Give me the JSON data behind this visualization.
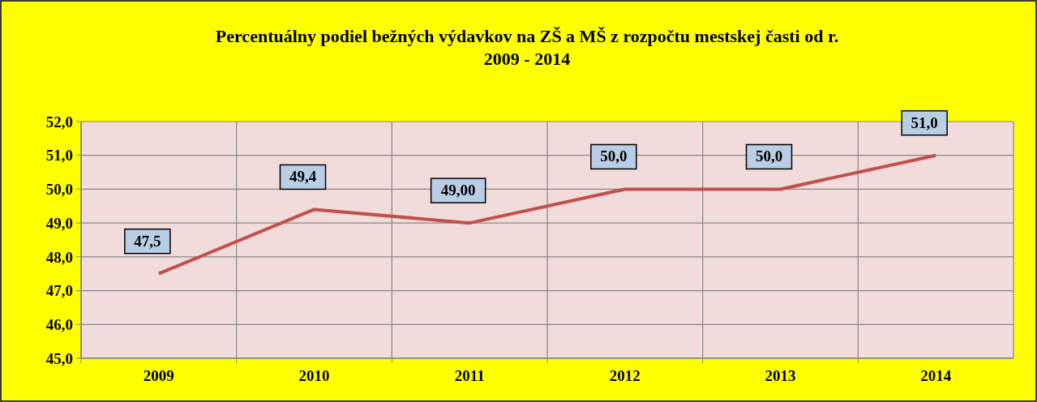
{
  "chart_data": {
    "type": "line",
    "title": "Percentuálny podiel bežných výdavkov na ZŠ a MŠ z rozpočtu mestskej časti od r.\n2009 - 2014",
    "categories": [
      "2009",
      "2010",
      "2011",
      "2012",
      "2013",
      "2014"
    ],
    "series": [
      {
        "color": "#c0504d",
        "values": [
          47.5,
          49.4,
          49.0,
          50.0,
          50.0,
          51.0
        ],
        "value_labels": [
          "47,5",
          "49,4",
          "49,00",
          "50,0",
          "50,0",
          "51,0"
        ]
      }
    ],
    "ylim": [
      45,
      52
    ],
    "yticks": [
      {
        "value": 45,
        "label": "45,0"
      },
      {
        "value": 46,
        "label": "46,0"
      },
      {
        "value": 47,
        "label": "47,0"
      },
      {
        "value": 48,
        "label": "48,0"
      },
      {
        "value": 49,
        "label": "49,0"
      },
      {
        "value": 50,
        "label": "50,0"
      },
      {
        "value": 51,
        "label": "51,0"
      },
      {
        "value": 52,
        "label": "52,0"
      }
    ],
    "grid": true,
    "marker": "none",
    "line_style": "solid"
  }
}
